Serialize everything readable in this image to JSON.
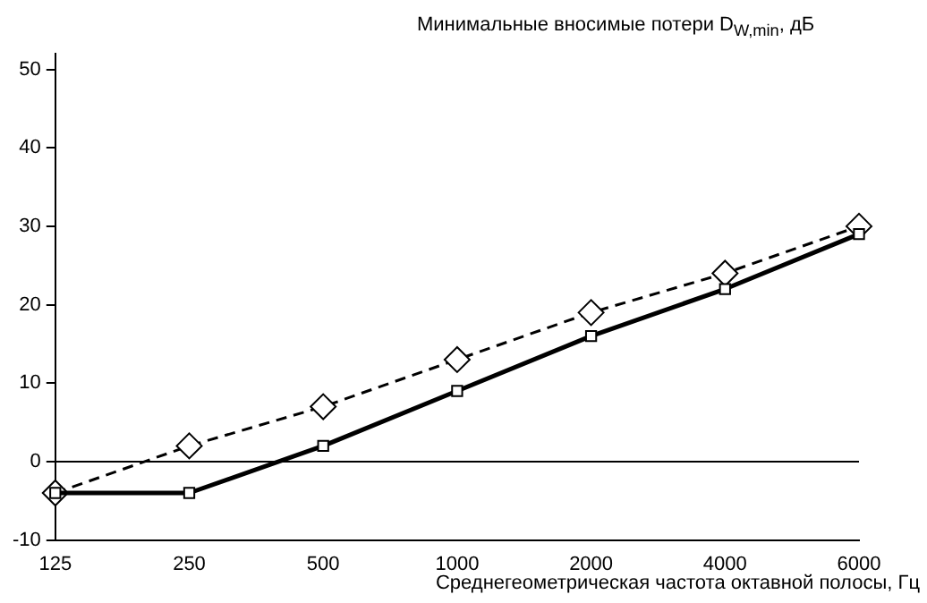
{
  "chart_data": {
    "type": "line",
    "ylabel": "Минимальные вносимые потери D$_{W,min}$, дБ",
    "xlabel": "Среднегеометрическая частота октавной полосы, Гц",
    "categories": [
      "125",
      "250",
      "500",
      "1000",
      "2000",
      "4000",
      "6000"
    ],
    "series": [
      {
        "color": "#000000",
        "values": [
          -4,
          -4,
          2,
          9,
          16,
          22,
          29
        ],
        "marker": "square",
        "line_style": "solid"
      },
      {
        "color": "#000000",
        "values": [
          -4,
          2,
          7,
          13,
          19,
          24,
          30
        ],
        "marker": "diamond",
        "line_style": "dashed"
      }
    ],
    "ylim": [
      -10,
      52
    ],
    "yticks": [
      -10,
      0,
      10,
      20,
      30,
      40,
      50
    ],
    "grid": false,
    "legend": false,
    "ref_lines": [
      {
        "axis": "y",
        "value": 0,
        "color": "#000000"
      }
    ]
  }
}
